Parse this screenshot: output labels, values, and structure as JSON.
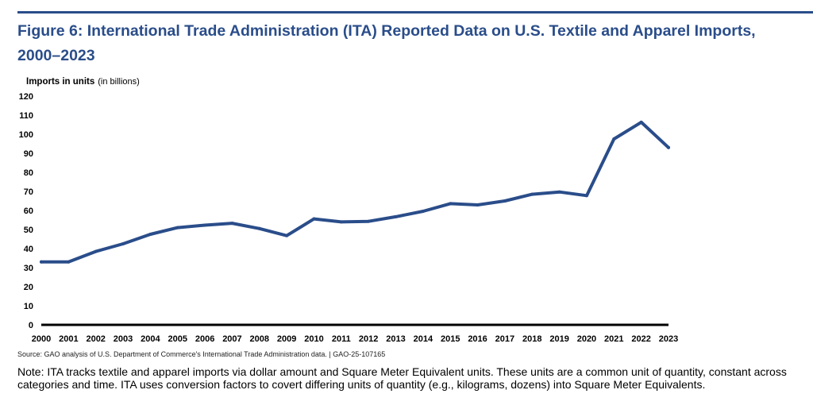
{
  "figure": {
    "title": "Figure 6: International Trade Administration (ITA) Reported Data on U.S. Textile and Apparel Imports, 2000–2023",
    "source": "Source: GAO analysis of U.S. Department of Commerce's International Trade Administration data.  |  GAO-25-107165",
    "note": "Note: ITA tracks textile and apparel imports via dollar amount and Square Meter Equivalent units. These units are a common unit of quantity, constant across categories and time. ITA uses conversion factors to covert differing units of quantity (e.g., kilograms, dozens) into Square Meter Equivalents."
  },
  "colors": {
    "accent": "#2a4d8a",
    "line": "#2a4d8a",
    "axis": "#000000"
  },
  "chart_data": {
    "type": "line",
    "ylabel": "Imports in units",
    "ylabel_unit": "(in billions)",
    "xlabel": "",
    "ylim": [
      0,
      120
    ],
    "yticks": [
      0,
      10,
      20,
      30,
      40,
      50,
      60,
      70,
      80,
      90,
      100,
      110,
      120
    ],
    "grid": false,
    "x": [
      "2000",
      "2001",
      "2002",
      "2003",
      "2004",
      "2005",
      "2006",
      "2007",
      "2008",
      "2009",
      "2010",
      "2011",
      "2012",
      "2013",
      "2014",
      "2015",
      "2016",
      "2017",
      "2018",
      "2019",
      "2020",
      "2021",
      "2022",
      "2023"
    ],
    "series": [
      {
        "values": [
          33,
          33,
          38.5,
          42.5,
          47.5,
          51,
          52.3,
          53.3,
          50.5,
          46.8,
          55.6,
          54,
          54.3,
          56.7,
          59.6,
          63.6,
          62.9,
          65,
          68.5,
          69.7,
          67.8,
          97.5,
          106.3,
          93
        ]
      }
    ]
  }
}
